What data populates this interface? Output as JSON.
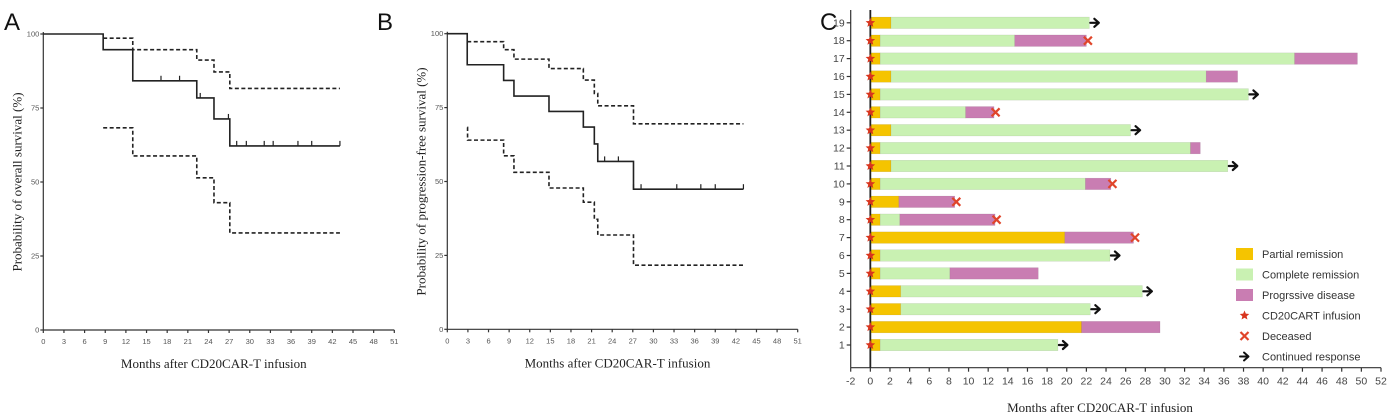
{
  "chart_data": [
    {
      "panel": "A",
      "type": "line",
      "subtype": "kaplan-meier",
      "title": "",
      "xlabel": "Months after CD20CAR-T infusion",
      "ylabel": "Probability of overall survival (%)",
      "xlim": [
        0,
        51
      ],
      "ylim": [
        0,
        100
      ],
      "xticks": [
        0,
        3,
        6,
        9,
        12,
        15,
        18,
        21,
        24,
        27,
        30,
        33,
        36,
        39,
        42,
        45,
        48,
        51
      ],
      "yticks": [
        0,
        25,
        50,
        75,
        100
      ],
      "series": [
        {
          "name": "Overall survival",
          "style": "solid",
          "steps": [
            [
              0,
              100
            ],
            [
              8.7,
              94.7
            ],
            [
              13.0,
              84.2
            ],
            [
              22.3,
              78.4
            ],
            [
              24.8,
              71.3
            ],
            [
              27.1,
              62.2
            ]
          ],
          "end": 43.1,
          "censored": [
            17.1,
            19.8,
            22.8,
            26.9,
            28.1,
            29.5,
            32.1,
            33.4,
            37.0,
            39.0,
            43.1
          ]
        },
        {
          "name": "Upper 95% CI",
          "style": "dashed",
          "steps": [
            [
              8.7,
              98.6
            ],
            [
              13.0,
              94.7
            ],
            [
              22.3,
              91.2
            ],
            [
              24.8,
              87.2
            ],
            [
              27.1,
              81.6
            ]
          ],
          "end": 43.1
        },
        {
          "name": "Lower 95% CI",
          "style": "dashed",
          "steps": [
            [
              8.7,
              68.3
            ],
            [
              13.0,
              58.8
            ],
            [
              22.3,
              51.4
            ],
            [
              24.8,
              43.0
            ],
            [
              27.1,
              32.8
            ]
          ],
          "end": 43.1
        }
      ]
    },
    {
      "panel": "B",
      "type": "line",
      "subtype": "kaplan-meier",
      "title": "",
      "xlabel": "Months after CD20CAR-T infusion",
      "ylabel": "Probability of progression-free survival (%)",
      "xlim": [
        0,
        51
      ],
      "ylim": [
        0,
        100
      ],
      "xticks": [
        0,
        3,
        6,
        9,
        12,
        15,
        18,
        21,
        24,
        27,
        30,
        33,
        36,
        39,
        42,
        45,
        48,
        51
      ],
      "yticks": [
        0,
        25,
        50,
        75,
        100
      ],
      "series": [
        {
          "name": "Progression-free survival",
          "style": "solid",
          "steps": [
            [
              0,
              100
            ],
            [
              2.9,
              89.5
            ],
            [
              8.2,
              84.2
            ],
            [
              9.7,
              78.9
            ],
            [
              14.8,
              73.7
            ],
            [
              19.8,
              68.4
            ],
            [
              21.4,
              62.7
            ],
            [
              21.9,
              56.8
            ],
            [
              27.1,
              47.4
            ]
          ],
          "end": 43.1,
          "censored": [
            22.9,
            24.9,
            27.1,
            28.2,
            33.4,
            36.9,
            39.0,
            43.1
          ]
        },
        {
          "name": "Upper 95% CI",
          "style": "dashed",
          "steps": [
            [
              2.9,
              97.3
            ],
            [
              8.2,
              94.6
            ],
            [
              9.7,
              91.4
            ],
            [
              14.8,
              88.2
            ],
            [
              19.8,
              84.3
            ],
            [
              21.4,
              79.8
            ],
            [
              21.9,
              75.6
            ],
            [
              27.1,
              69.5
            ]
          ],
          "end": 43.1
        },
        {
          "name": "Lower 95% CI",
          "style": "dashed",
          "steps": [
            [
              2.9,
              68.3
            ],
            [
              2.95,
              64.0
            ],
            [
              8.2,
              58.7
            ],
            [
              9.7,
              53.1
            ],
            [
              14.8,
              47.8
            ],
            [
              19.8,
              43.0
            ],
            [
              21.4,
              37.2
            ],
            [
              21.9,
              31.9
            ],
            [
              27.1,
              21.7
            ]
          ],
          "end": 43.1
        }
      ]
    },
    {
      "panel": "C",
      "type": "bar",
      "subtype": "swimmer",
      "title": "",
      "xlabel": "Months after CD20CAR-T infusion",
      "ylabel": "",
      "xlim": [
        -2,
        52
      ],
      "xticks": [
        -2,
        0,
        2,
        4,
        6,
        8,
        10,
        12,
        14,
        16,
        18,
        20,
        22,
        24,
        26,
        28,
        30,
        32,
        34,
        36,
        38,
        40,
        42,
        44,
        46,
        48,
        50,
        52
      ],
      "categories": [
        "1",
        "2",
        "3",
        "4",
        "5",
        "6",
        "7",
        "8",
        "9",
        "10",
        "11",
        "12",
        "13",
        "14",
        "15",
        "16",
        "17",
        "18",
        "19"
      ],
      "legend_position": "bottom-right",
      "legend": [
        {
          "key": "PR",
          "label": "Partial remission",
          "kind": "swatch",
          "color": "#F5C400"
        },
        {
          "key": "CR",
          "label": "Complete remission",
          "kind": "swatch",
          "color": "#C9F1B2"
        },
        {
          "key": "PD",
          "label": "Progrssive disease",
          "kind": "swatch",
          "color": "#C97DB2"
        },
        {
          "key": "infusion",
          "label": "CD20CART infusion",
          "kind": "star",
          "color": "#D8351E"
        },
        {
          "key": "deceased",
          "label": "Deceased",
          "kind": "cross",
          "color": "#E0452A"
        },
        {
          "key": "continued",
          "label": "Continued response",
          "kind": "arrow",
          "color": "#111111"
        }
      ],
      "patients": [
        {
          "id": "1",
          "segments": [
            [
              "PR",
              0,
              1.0
            ],
            [
              "CR",
              1.0,
              19.1
            ]
          ],
          "outcome": "continued"
        },
        {
          "id": "2",
          "segments": [
            [
              "PR",
              0,
              21.5
            ],
            [
              "PD",
              21.5,
              29.5
            ]
          ],
          "outcome": "none"
        },
        {
          "id": "3",
          "segments": [
            [
              "PR",
              0,
              3.1
            ],
            [
              "CR",
              3.1,
              22.4
            ]
          ],
          "outcome": "continued"
        },
        {
          "id": "4",
          "segments": [
            [
              "PR",
              0,
              3.1
            ],
            [
              "CR",
              3.1,
              27.7
            ]
          ],
          "outcome": "continued"
        },
        {
          "id": "5",
          "segments": [
            [
              "PR",
              0,
              1.0
            ],
            [
              "CR",
              1.0,
              8.1
            ],
            [
              "PD",
              8.1,
              17.1
            ]
          ],
          "outcome": "none"
        },
        {
          "id": "6",
          "segments": [
            [
              "PR",
              0,
              1.0
            ],
            [
              "CR",
              1.0,
              24.4
            ]
          ],
          "outcome": "continued"
        },
        {
          "id": "7",
          "segments": [
            [
              "PR",
              0,
              19.8
            ],
            [
              "PD",
              19.8,
              26.8
            ]
          ],
          "outcome": "deceased"
        },
        {
          "id": "8",
          "segments": [
            [
              "PR",
              0,
              1.0
            ],
            [
              "CR",
              1.0,
              3.0
            ],
            [
              "PD",
              3.0,
              12.7
            ]
          ],
          "outcome": "deceased"
        },
        {
          "id": "9",
          "segments": [
            [
              "PR",
              0,
              2.9
            ],
            [
              "PD",
              2.9,
              8.6
            ]
          ],
          "outcome": "deceased"
        },
        {
          "id": "10",
          "segments": [
            [
              "PR",
              0,
              1.0
            ],
            [
              "CR",
              1.0,
              21.9
            ],
            [
              "PD",
              21.9,
              24.5
            ]
          ],
          "outcome": "deceased"
        },
        {
          "id": "11",
          "segments": [
            [
              "PR",
              0,
              2.1
            ],
            [
              "CR",
              2.1,
              36.4
            ]
          ],
          "outcome": "continued"
        },
        {
          "id": "12",
          "segments": [
            [
              "PR",
              0,
              1.0
            ],
            [
              "CR",
              1.0,
              32.6
            ],
            [
              "PD",
              32.6,
              33.6
            ]
          ],
          "outcome": "none"
        },
        {
          "id": "13",
          "segments": [
            [
              "PR",
              0,
              2.1
            ],
            [
              "CR",
              2.1,
              26.5
            ]
          ],
          "outcome": "continued"
        },
        {
          "id": "14",
          "segments": [
            [
              "PR",
              0,
              1.0
            ],
            [
              "CR",
              1.0,
              9.7
            ],
            [
              "PD",
              9.7,
              12.6
            ]
          ],
          "outcome": "deceased"
        },
        {
          "id": "15",
          "segments": [
            [
              "PR",
              0,
              1.0
            ],
            [
              "CR",
              1.0,
              38.5
            ]
          ],
          "outcome": "continued"
        },
        {
          "id": "16",
          "segments": [
            [
              "PR",
              0,
              2.1
            ],
            [
              "CR",
              2.1,
              34.2
            ],
            [
              "PD",
              34.2,
              37.4
            ]
          ],
          "outcome": "none"
        },
        {
          "id": "17",
          "segments": [
            [
              "PR",
              0,
              1.0
            ],
            [
              "CR",
              1.0,
              43.2
            ],
            [
              "PD",
              43.2,
              49.6
            ]
          ],
          "outcome": "none"
        },
        {
          "id": "18",
          "segments": [
            [
              "PR",
              0,
              1.0
            ],
            [
              "CR",
              1.0,
              14.7
            ],
            [
              "PD",
              14.7,
              22.0
            ]
          ],
          "outcome": "deceased"
        },
        {
          "id": "19",
          "segments": [
            [
              "PR",
              0,
              2.1
            ],
            [
              "CR",
              2.1,
              22.3
            ]
          ],
          "outcome": "continued"
        }
      ]
    }
  ],
  "panels": {
    "a_label": "A",
    "b_label": "B",
    "c_label": "C"
  }
}
